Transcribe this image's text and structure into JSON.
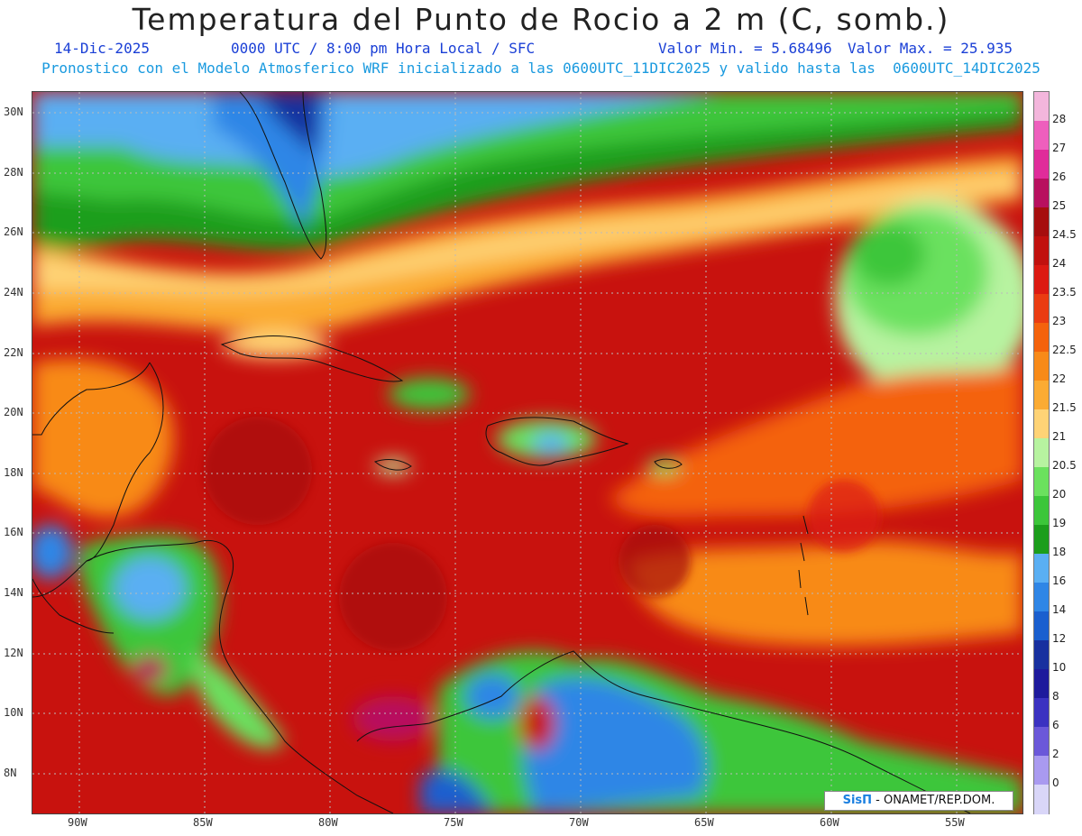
{
  "title": "Temperatura del Punto de Rocio a 2 m (C, somb.)",
  "subtitle": {
    "date": "14-Dic-2025",
    "time": "0000 UTC / 8:00 pm Hora Local / SFC",
    "min": "Valor Min. = 5.68496",
    "max": "Valor Max. = 25.935"
  },
  "model_line": "Pronostico con el Modelo Atmosferico WRF inicializado a las 0600UTC_11DIC2025 y valido hasta las  0600UTC_14DIC2025",
  "axes": {
    "lat_labels": [
      "30N",
      "28N",
      "26N",
      "24N",
      "22N",
      "20N",
      "18N",
      "16N",
      "14N",
      "12N",
      "10N",
      "8N"
    ],
    "lon_labels": [
      "90W",
      "85W",
      "80W",
      "75W",
      "70W",
      "65W",
      "60W",
      "55W"
    ]
  },
  "colorbar": {
    "labels": [
      "28",
      "27",
      "26",
      "25",
      "24.5",
      "24",
      "23.5",
      "23",
      "22.5",
      "22",
      "21.5",
      "21",
      "20.5",
      "20",
      "19",
      "18",
      "16",
      "14",
      "12",
      "10",
      "8",
      "6",
      "2",
      "0"
    ],
    "colors": [
      "#f3b6dc",
      "#ee5fbd",
      "#e02c9a",
      "#b8105f",
      "#a60e0e",
      "#c1110e",
      "#dc1a12",
      "#ea3c12",
      "#f4620c",
      "#f88a18",
      "#fbab33",
      "#fed376",
      "#b7f3a0",
      "#6be15e",
      "#3cc63a",
      "#1c9e1c",
      "#5aaff3",
      "#2f86e6",
      "#1a5fcf",
      "#18309f",
      "#1e1a9c",
      "#3b32c1",
      "#6b58d9",
      "#a99af0",
      "#d9d6f8"
    ]
  },
  "credit": {
    "logo": "SisΠ",
    "text": "- ONAMET/REP.DOM."
  }
}
